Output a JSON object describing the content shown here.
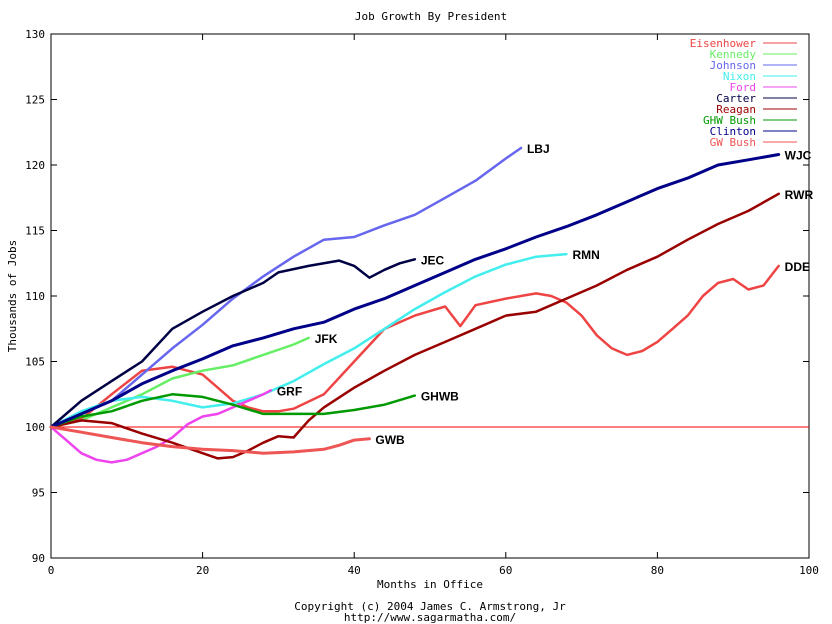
{
  "chart_data": {
    "type": "line",
    "title": "Job Growth By President",
    "xlabel": "Months in Office",
    "ylabel": "Thousands of Jobs",
    "xlim": [
      0,
      100
    ],
    "ylim": [
      90,
      130
    ],
    "x_ticks": [
      0,
      20,
      40,
      60,
      80,
      100
    ],
    "y_ticks": [
      90,
      95,
      100,
      105,
      110,
      115,
      120,
      125,
      130
    ],
    "grid": false,
    "legend_position": "top-right",
    "reference_line": {
      "y": 100,
      "color": "#ff0000"
    },
    "series": [
      {
        "name": "Eisenhower",
        "end_label": "DDE",
        "color": "#ee4444",
        "width": 2.5,
        "points": [
          [
            0,
            100
          ],
          [
            4,
            100.6
          ],
          [
            8,
            102.5
          ],
          [
            12,
            104.3
          ],
          [
            16,
            104.6
          ],
          [
            20,
            104.0
          ],
          [
            22,
            103.0
          ],
          [
            24,
            102.0
          ],
          [
            26,
            101.5
          ],
          [
            28,
            101.2
          ],
          [
            30,
            101.2
          ],
          [
            32,
            101.4
          ],
          [
            36,
            102.5
          ],
          [
            40,
            105.0
          ],
          [
            44,
            107.5
          ],
          [
            48,
            108.5
          ],
          [
            52,
            109.2
          ],
          [
            54,
            107.7
          ],
          [
            56,
            109.3
          ],
          [
            60,
            109.8
          ],
          [
            64,
            110.2
          ],
          [
            66,
            110.0
          ],
          [
            68,
            109.5
          ],
          [
            70,
            108.5
          ],
          [
            72,
            107.0
          ],
          [
            74,
            106.0
          ],
          [
            76,
            105.5
          ],
          [
            78,
            105.8
          ],
          [
            80,
            106.5
          ],
          [
            82,
            107.5
          ],
          [
            84,
            108.5
          ],
          [
            86,
            110.0
          ],
          [
            88,
            111.0
          ],
          [
            90,
            111.3
          ],
          [
            92,
            110.5
          ],
          [
            94,
            110.8
          ],
          [
            96,
            112.3
          ]
        ]
      },
      {
        "name": "Kennedy",
        "end_label": "JFK",
        "color": "#66ee66",
        "width": 2.5,
        "points": [
          [
            0,
            100
          ],
          [
            4,
            100.5
          ],
          [
            8,
            101.5
          ],
          [
            12,
            102.5
          ],
          [
            16,
            103.7
          ],
          [
            20,
            104.3
          ],
          [
            24,
            104.7
          ],
          [
            28,
            105.5
          ],
          [
            32,
            106.3
          ],
          [
            34,
            106.8
          ]
        ]
      },
      {
        "name": "Johnson",
        "end_label": "LBJ",
        "color": "#6666ee",
        "width": 2.5,
        "points": [
          [
            0,
            100
          ],
          [
            4,
            101.0
          ],
          [
            8,
            102.0
          ],
          [
            12,
            104.0
          ],
          [
            16,
            106.0
          ],
          [
            20,
            107.8
          ],
          [
            24,
            109.8
          ],
          [
            28,
            111.5
          ],
          [
            32,
            113.0
          ],
          [
            36,
            114.3
          ],
          [
            40,
            114.5
          ],
          [
            44,
            115.4
          ],
          [
            48,
            116.2
          ],
          [
            52,
            117.5
          ],
          [
            56,
            118.8
          ],
          [
            60,
            120.5
          ],
          [
            62,
            121.3
          ]
        ]
      },
      {
        "name": "Nixon",
        "end_label": "RMN",
        "color": "#44eeee",
        "width": 2.5,
        "points": [
          [
            0,
            100
          ],
          [
            4,
            101.2
          ],
          [
            8,
            102.0
          ],
          [
            12,
            102.3
          ],
          [
            16,
            102.0
          ],
          [
            20,
            101.5
          ],
          [
            24,
            101.8
          ],
          [
            28,
            102.5
          ],
          [
            32,
            103.5
          ],
          [
            36,
            104.8
          ],
          [
            40,
            106.0
          ],
          [
            44,
            107.5
          ],
          [
            48,
            109.0
          ],
          [
            52,
            110.3
          ],
          [
            56,
            111.5
          ],
          [
            60,
            112.4
          ],
          [
            64,
            113.0
          ],
          [
            68,
            113.2
          ]
        ]
      },
      {
        "name": "Ford",
        "end_label": "GRF",
        "color": "#ee44ee",
        "width": 2.5,
        "points": [
          [
            0,
            100
          ],
          [
            2,
            99.0
          ],
          [
            4,
            98.0
          ],
          [
            6,
            97.5
          ],
          [
            8,
            97.3
          ],
          [
            10,
            97.5
          ],
          [
            12,
            98.0
          ],
          [
            14,
            98.5
          ],
          [
            16,
            99.2
          ],
          [
            18,
            100.2
          ],
          [
            20,
            100.8
          ],
          [
            22,
            101.0
          ],
          [
            24,
            101.5
          ],
          [
            26,
            102.0
          ],
          [
            28,
            102.5
          ],
          [
            29,
            102.8
          ]
        ]
      },
      {
        "name": "Carter",
        "end_label": "JEC",
        "color": "#000044",
        "width": 2.5,
        "points": [
          [
            0,
            100
          ],
          [
            4,
            102.0
          ],
          [
            8,
            103.5
          ],
          [
            12,
            105.0
          ],
          [
            16,
            107.5
          ],
          [
            20,
            108.8
          ],
          [
            24,
            110.0
          ],
          [
            28,
            111.0
          ],
          [
            30,
            111.8
          ],
          [
            34,
            112.3
          ],
          [
            38,
            112.7
          ],
          [
            40,
            112.3
          ],
          [
            42,
            111.4
          ],
          [
            44,
            112.0
          ],
          [
            46,
            112.5
          ],
          [
            48,
            112.8
          ]
        ]
      },
      {
        "name": "Reagan",
        "end_label": "RWR",
        "color": "#990000",
        "width": 2.5,
        "points": [
          [
            0,
            100
          ],
          [
            4,
            100.5
          ],
          [
            8,
            100.3
          ],
          [
            12,
            99.5
          ],
          [
            16,
            98.8
          ],
          [
            20,
            98.0
          ],
          [
            22,
            97.6
          ],
          [
            24,
            97.7
          ],
          [
            26,
            98.2
          ],
          [
            28,
            98.8
          ],
          [
            30,
            99.3
          ],
          [
            32,
            99.2
          ],
          [
            34,
            100.5
          ],
          [
            36,
            101.5
          ],
          [
            40,
            103.0
          ],
          [
            44,
            104.3
          ],
          [
            48,
            105.5
          ],
          [
            52,
            106.5
          ],
          [
            56,
            107.5
          ],
          [
            60,
            108.5
          ],
          [
            64,
            108.8
          ],
          [
            68,
            109.8
          ],
          [
            72,
            110.8
          ],
          [
            76,
            112.0
          ],
          [
            80,
            113.0
          ],
          [
            84,
            114.3
          ],
          [
            88,
            115.5
          ],
          [
            92,
            116.5
          ],
          [
            96,
            117.8
          ]
        ]
      },
      {
        "name": "GHW Bush",
        "end_label": "GHWB",
        "color": "#009900",
        "width": 2.5,
        "points": [
          [
            0,
            100
          ],
          [
            4,
            100.8
          ],
          [
            8,
            101.2
          ],
          [
            12,
            102.0
          ],
          [
            16,
            102.5
          ],
          [
            20,
            102.3
          ],
          [
            24,
            101.7
          ],
          [
            28,
            101.0
          ],
          [
            32,
            101.0
          ],
          [
            36,
            101.0
          ],
          [
            40,
            101.3
          ],
          [
            44,
            101.7
          ],
          [
            48,
            102.4
          ]
        ]
      },
      {
        "name": "Clinton",
        "end_label": "WJC",
        "color": "#000088",
        "width": 3,
        "points": [
          [
            0,
            100
          ],
          [
            4,
            101.0
          ],
          [
            8,
            102.0
          ],
          [
            12,
            103.3
          ],
          [
            16,
            104.3
          ],
          [
            20,
            105.2
          ],
          [
            24,
            106.2
          ],
          [
            28,
            106.8
          ],
          [
            32,
            107.5
          ],
          [
            36,
            108.0
          ],
          [
            40,
            109.0
          ],
          [
            44,
            109.8
          ],
          [
            48,
            110.8
          ],
          [
            52,
            111.8
          ],
          [
            56,
            112.8
          ],
          [
            60,
            113.6
          ],
          [
            64,
            114.5
          ],
          [
            68,
            115.3
          ],
          [
            72,
            116.2
          ],
          [
            76,
            117.2
          ],
          [
            80,
            118.2
          ],
          [
            84,
            119.0
          ],
          [
            88,
            120.0
          ],
          [
            92,
            120.4
          ],
          [
            96,
            120.8
          ]
        ]
      },
      {
        "name": "GW Bush",
        "end_label": "GWB",
        "color": "#ee5555",
        "width": 3,
        "points": [
          [
            0,
            100
          ],
          [
            4,
            99.6
          ],
          [
            8,
            99.2
          ],
          [
            12,
            98.8
          ],
          [
            16,
            98.5
          ],
          [
            20,
            98.3
          ],
          [
            24,
            98.2
          ],
          [
            28,
            98.0
          ],
          [
            32,
            98.1
          ],
          [
            36,
            98.3
          ],
          [
            38,
            98.6
          ],
          [
            40,
            99.0
          ],
          [
            42,
            99.1
          ]
        ]
      }
    ]
  },
  "footer": {
    "copyright": "Copyright (c) 2004 James C. Armstrong, Jr",
    "url": "http://www.sagarmatha.com/"
  }
}
